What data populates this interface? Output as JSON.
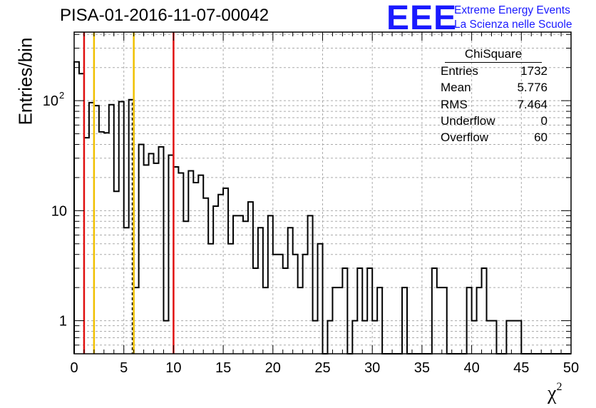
{
  "header": {
    "title": "PISA-01-2016-11-07-00042",
    "logo_text": "EEE",
    "org_line1": "Extreme Energy Events",
    "org_line2": "La Scienza nelle Scuole"
  },
  "stats": {
    "title": "ChiSquare",
    "rows": [
      {
        "label": "Entries",
        "value": "1732"
      },
      {
        "label": "Mean",
        "value": "5.776"
      },
      {
        "label": "RMS",
        "value": "7.464"
      },
      {
        "label": "Underflow",
        "value": "0"
      },
      {
        "label": "Overflow",
        "value": "60"
      }
    ]
  },
  "colors": {
    "red_line": "#e01010",
    "yellow_line": "#f0c000",
    "logo_blue": "#1a1aff",
    "grid": "#aaaaaa"
  },
  "chart_data": {
    "type": "histogram-step",
    "log_y": true,
    "grid": true,
    "xlabel": "χ",
    "xlabel_sup": "2",
    "ylabel": "Entries/bin",
    "xlim": [
      0,
      50
    ],
    "ylim": [
      0.5,
      420
    ],
    "bin_width": 0.5,
    "x_ticks": [
      0,
      5,
      10,
      15,
      20,
      25,
      30,
      35,
      40,
      45,
      50
    ],
    "y_ticks": [
      {
        "value": 1,
        "label": "1"
      },
      {
        "value": 10,
        "label": "10"
      },
      {
        "value": 100,
        "label": "10",
        "sup": "2"
      }
    ],
    "values": [
      225,
      176,
      46,
      96,
      90,
      52,
      51,
      92,
      15,
      98,
      7,
      102,
      2,
      40,
      26,
      33,
      27,
      38,
      1,
      32,
      25,
      22,
      8,
      23,
      18,
      21,
      13,
      5,
      11,
      14,
      16,
      5,
      9,
      9,
      8,
      12,
      3,
      7,
      2,
      9,
      4,
      4,
      3,
      7,
      4,
      2,
      4,
      9,
      1,
      5,
      0.5,
      1,
      2,
      2,
      3,
      0.5,
      1,
      3,
      1,
      3,
      1,
      2,
      0.5,
      0.5,
      0.5,
      0.5,
      2,
      0.5,
      0.5,
      0.5,
      0.5,
      0.5,
      3,
      2,
      2,
      0.5,
      0.5,
      0.5,
      0.5,
      2,
      1,
      2,
      3,
      1,
      1,
      0.5,
      0.5,
      1,
      1,
      1,
      0.5,
      0.5,
      0.5,
      0.5,
      0.5,
      0.5,
      0.5,
      0.5,
      0.5,
      0.5
    ],
    "vertical_lines": [
      {
        "x": 1,
        "color": "red"
      },
      {
        "x": 2,
        "color": "yellow"
      },
      {
        "x": 6,
        "color": "yellow"
      },
      {
        "x": 10,
        "color": "red"
      }
    ],
    "dashed_line": {
      "x": 5.85
    }
  }
}
